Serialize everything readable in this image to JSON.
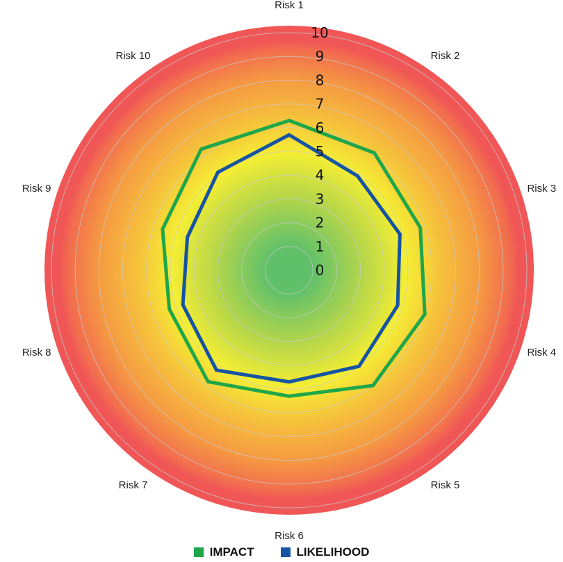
{
  "chart_data": {
    "type": "radar",
    "categories": [
      "Risk 1",
      "Risk 2",
      "Risk 3",
      "Risk 4",
      "Risk 5",
      "Risk 6",
      "Risk 7",
      "Risk 8",
      "Risk 9",
      "Risk 10"
    ],
    "r_ticks": [
      "0",
      "1",
      "2",
      "3",
      "4",
      "5",
      "6",
      "7",
      "8",
      "9",
      "10"
    ],
    "rlim": [
      0,
      10
    ],
    "series": [
      {
        "name": "IMPACT",
        "color": "#1fa64a",
        "values": [
          6.3,
          6.1,
          5.8,
          6.0,
          6.0,
          5.3,
          5.8,
          5.3,
          5.6,
          6.3
        ]
      },
      {
        "name": "LIKELIHOOD",
        "color": "#1654a3",
        "values": [
          5.7,
          4.9,
          4.9,
          4.8,
          5.0,
          4.7,
          5.2,
          4.7,
          4.5,
          5.1
        ]
      }
    ],
    "background_zones": {
      "colors": [
        "#5cbf6a",
        "#f5ee34",
        "#f59a42",
        "#f05656"
      ]
    },
    "grid": true,
    "legend_position": "bottom"
  },
  "legend": {
    "items": [
      {
        "label": "IMPACT",
        "color": "#1fa64a"
      },
      {
        "label": "LIKELIHOOD",
        "color": "#1654a3"
      }
    ]
  }
}
